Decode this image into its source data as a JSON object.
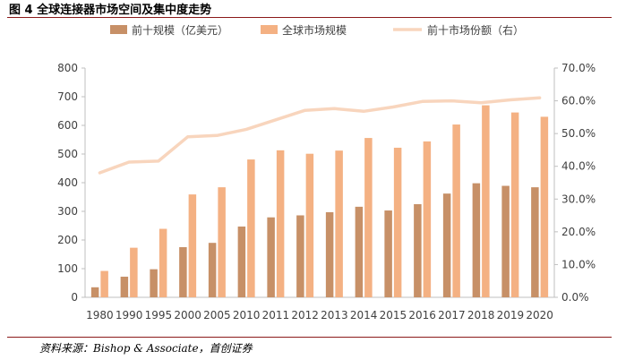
{
  "figure": {
    "title": "图 4 全球连接器市场空间及集中度走势",
    "source": "资料来源：Bishop & Associate，首创证券"
  },
  "colors": {
    "top10": "#c79067",
    "global": "#f4b183",
    "share": "#f8d5bd",
    "axis": "#bfbfbf",
    "rule": "#8b1a1a"
  },
  "chart_data": {
    "type": "bar",
    "categories": [
      "1980",
      "1990",
      "1995",
      "2000",
      "2005",
      "2010",
      "2011",
      "2012",
      "2013",
      "2014",
      "2015",
      "2016",
      "2017",
      "2018",
      "2019",
      "2020"
    ],
    "series": [
      {
        "name": "前十规模（亿美元）",
        "type": "bar",
        "axis": "left",
        "values": [
          35,
          72,
          98,
          175,
          190,
          247,
          279,
          286,
          297,
          316,
          303,
          325,
          362,
          398,
          389,
          384
        ]
      },
      {
        "name": "全球市场规模",
        "type": "bar",
        "axis": "left",
        "values": [
          92,
          173,
          239,
          359,
          384,
          481,
          513,
          501,
          512,
          556,
          522,
          544,
          603,
          670,
          645,
          630
        ]
      },
      {
        "name": "前十市场份额（右）",
        "type": "line",
        "axis": "right",
        "values": [
          0.38,
          0.413,
          0.416,
          0.49,
          0.494,
          0.513,
          0.542,
          0.571,
          0.576,
          0.568,
          0.581,
          0.598,
          0.6,
          0.594,
          0.603,
          0.609
        ]
      }
    ],
    "y_left": {
      "min": 0,
      "max": 800,
      "ticks": [
        "0",
        "100",
        "200",
        "300",
        "400",
        "500",
        "600",
        "700",
        "800"
      ]
    },
    "y_right": {
      "min": 0,
      "max": 0.7,
      "ticks": [
        "0.0%",
        "10.0%",
        "20.0%",
        "30.0%",
        "40.0%",
        "50.0%",
        "60.0%",
        "70.0%"
      ]
    },
    "legend": {
      "position": "top"
    },
    "grid": false
  }
}
